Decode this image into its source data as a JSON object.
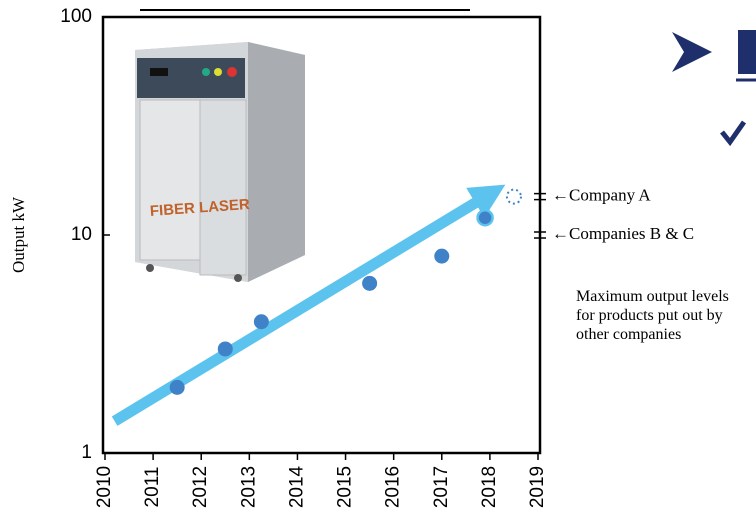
{
  "chart_data": {
    "type": "scatter",
    "y_label": "Output kW",
    "xlim": [
      2010,
      2019
    ],
    "xticks": [
      2010,
      2011,
      2012,
      2013,
      2014,
      2015,
      2016,
      2017,
      2018,
      2019
    ],
    "ylim": [
      1,
      100
    ],
    "yticks": [
      1,
      10,
      100
    ],
    "log_y": true,
    "color": "#3f82c8",
    "points": {
      "x": [
        2011.5,
        2012.5,
        2013.25,
        2015.5,
        2017,
        2017.9
      ],
      "y": [
        2,
        3,
        4,
        6,
        8,
        12
      ]
    },
    "projected_point": {
      "x": 2018.5,
      "y": 15
    },
    "trend_arrow": {
      "x": [
        2010.2,
        2018.3
      ],
      "y": [
        1.4,
        17
      ],
      "color": "#5bc3ee"
    },
    "photo_label": "FIBER LASER",
    "annotations": [
      {
        "text": "←Company A",
        "value": 15
      },
      {
        "text": "←Companies B & C",
        "value": 10
      }
    ],
    "note": "Maximum output levels for products put out by other companies"
  }
}
